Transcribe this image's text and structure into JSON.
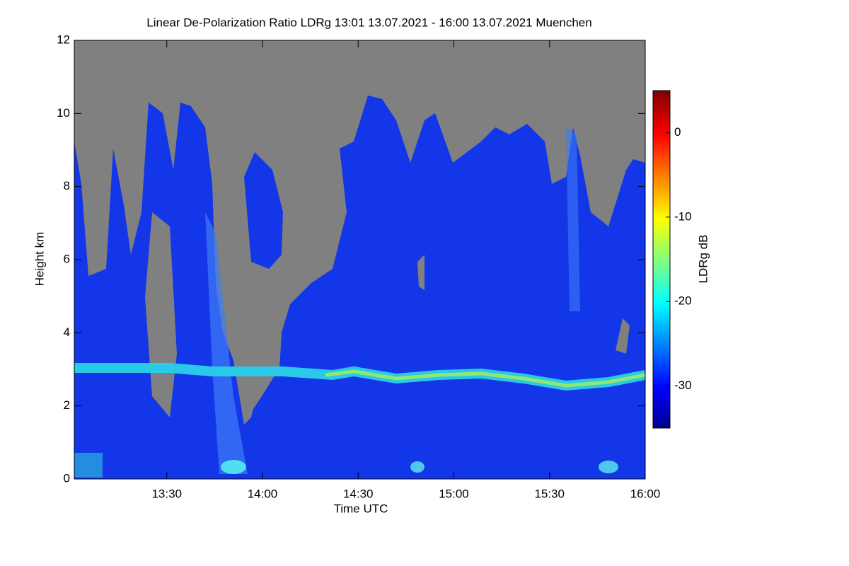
{
  "chart_data": {
    "type": "heatmap",
    "title": "Linear De-Polarization Ratio LDRg   13:01 13.07.2021 - 16:00 13.07.2021 Muenchen",
    "x_label": "Time UTC",
    "y_label": "Height km",
    "xlim": [
      13.0167,
      16.0
    ],
    "xticks": [
      {
        "value": 13.5,
        "label": "13:30"
      },
      {
        "value": 14.0,
        "label": "14:00"
      },
      {
        "value": 14.5,
        "label": "14:30"
      },
      {
        "value": 15.0,
        "label": "15:00"
      },
      {
        "value": 15.5,
        "label": "15:30"
      },
      {
        "value": 16.0,
        "label": "16:00"
      }
    ],
    "ylim": [
      0,
      12
    ],
    "yticks": [
      0,
      2,
      4,
      6,
      8,
      10,
      12
    ],
    "colorbar": {
      "label": "LDRg dB",
      "lim": [
        -35,
        5
      ],
      "ticks": [
        0,
        -10,
        -20,
        -30
      ]
    }
  }
}
